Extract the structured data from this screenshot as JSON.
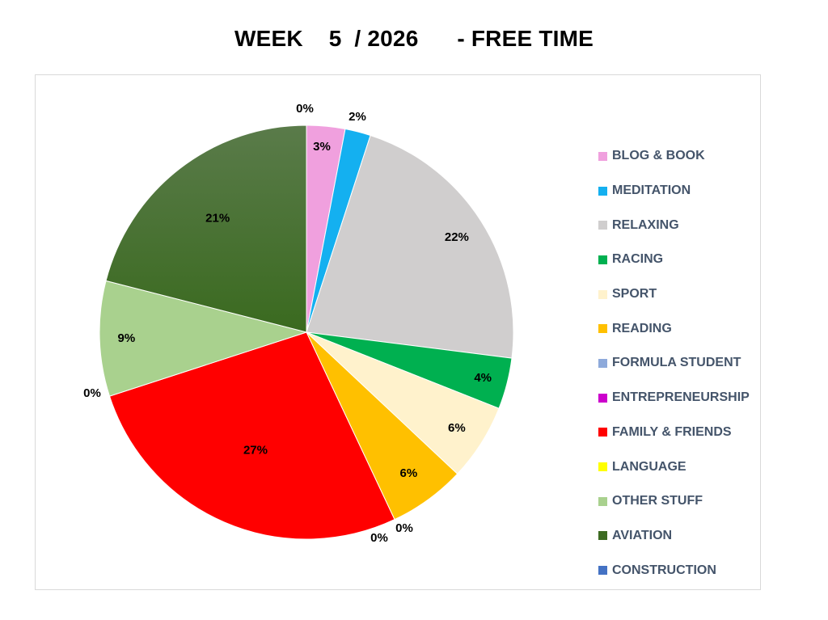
{
  "chart_data": {
    "type": "pie",
    "title": "WEEK    5  / 2026      - FREE TIME",
    "legend_position": "right",
    "categories": [
      "BLOG & BOOK",
      "MEDITATION",
      "RELAXING",
      "RACING",
      "SPORT",
      "READING",
      "FORMULA STUDENT",
      "ENTREPRENEURSHIP",
      "FAMILY & FRIENDS",
      "LANGUAGE",
      "OTHER STUFF",
      "AVIATION",
      "CONSTRUCTION"
    ],
    "values": [
      3,
      2,
      22,
      4,
      6,
      6,
      0,
      0,
      27,
      0,
      9,
      21,
      0
    ],
    "data_labels": [
      "3%",
      "2%",
      "22%",
      "4%",
      "6%",
      "6%",
      "0%",
      "0%",
      "27%",
      "0%",
      "9%",
      "21%",
      "0%"
    ],
    "colors": [
      "#f0a0de",
      "#14b0f0",
      "#d0cece",
      "#00b050",
      "#fff2cc",
      "#ffc000",
      "#8eaadb",
      "#cc00cc",
      "#ff0000",
      "#ffff00",
      "#a9d18e",
      "#3d6b22",
      "#4472c4"
    ]
  }
}
